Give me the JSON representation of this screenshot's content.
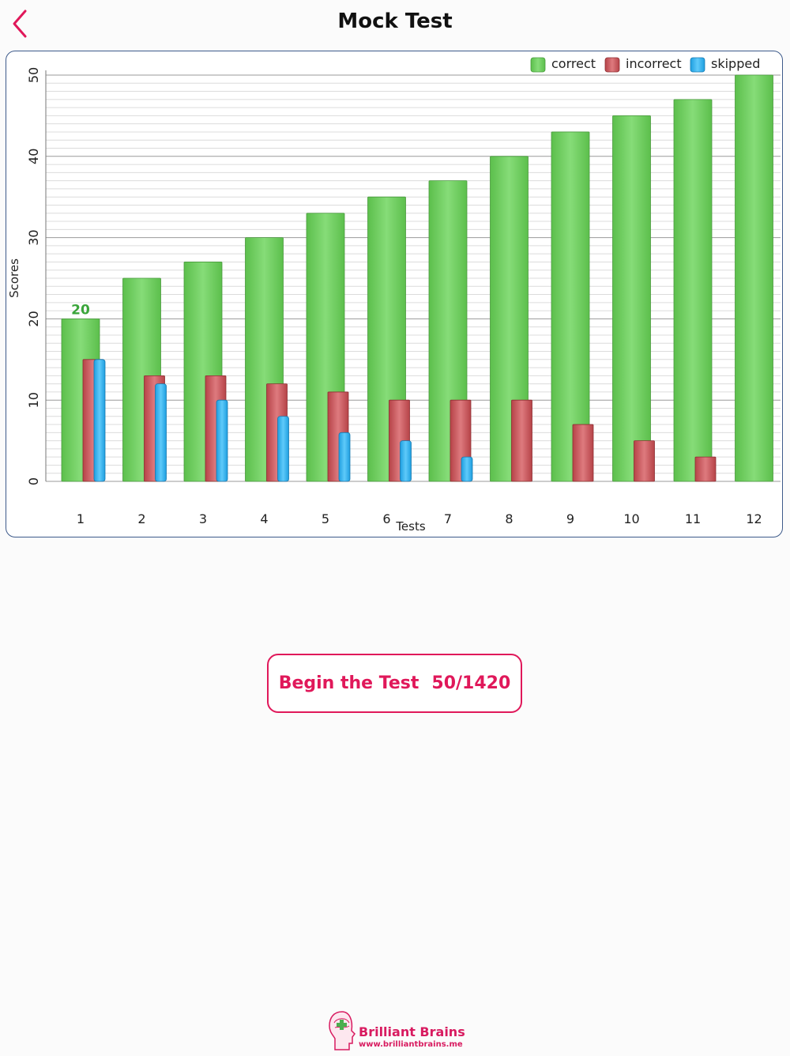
{
  "nav": {
    "title": "Mock Test"
  },
  "icons": {
    "back": "chevron-left-icon",
    "logo": "brain-head-logo"
  },
  "colors": {
    "accent": "#e0185a",
    "correct": "#6fce5f",
    "incorrect": "#c9585c",
    "skipped": "#2fb2f0",
    "value_label": "#3aa53a"
  },
  "chart_data": {
    "type": "bar",
    "xlabel": "Tests",
    "ylabel": "Scores",
    "ylim": [
      0,
      50
    ],
    "yticks": [
      0,
      10,
      20,
      30,
      40,
      50
    ],
    "minor_grid_step": 1,
    "legend_position": "top-right",
    "categories": [
      "1",
      "2",
      "3",
      "4",
      "5",
      "6",
      "7",
      "8",
      "9",
      "10",
      "11",
      "12"
    ],
    "series": [
      {
        "name": "correct",
        "values": [
          20,
          25,
          27,
          30,
          33,
          35,
          37,
          40,
          43,
          45,
          47,
          50
        ]
      },
      {
        "name": "incorrect",
        "values": [
          15,
          13,
          13,
          12,
          11,
          10,
          10,
          10,
          7,
          5,
          3,
          0
        ]
      },
      {
        "name": "skipped",
        "values": [
          15,
          12,
          10,
          8,
          6,
          5,
          3,
          0,
          0,
          0,
          0,
          0
        ]
      }
    ],
    "annotations": [
      {
        "category": "1",
        "series": "correct",
        "text": "20"
      }
    ]
  },
  "actions": {
    "begin_label": "Begin the Test",
    "progress": "50/1420"
  },
  "footer": {
    "brand": "Brilliant Brains",
    "url": "www.brilliantbrains.me"
  }
}
